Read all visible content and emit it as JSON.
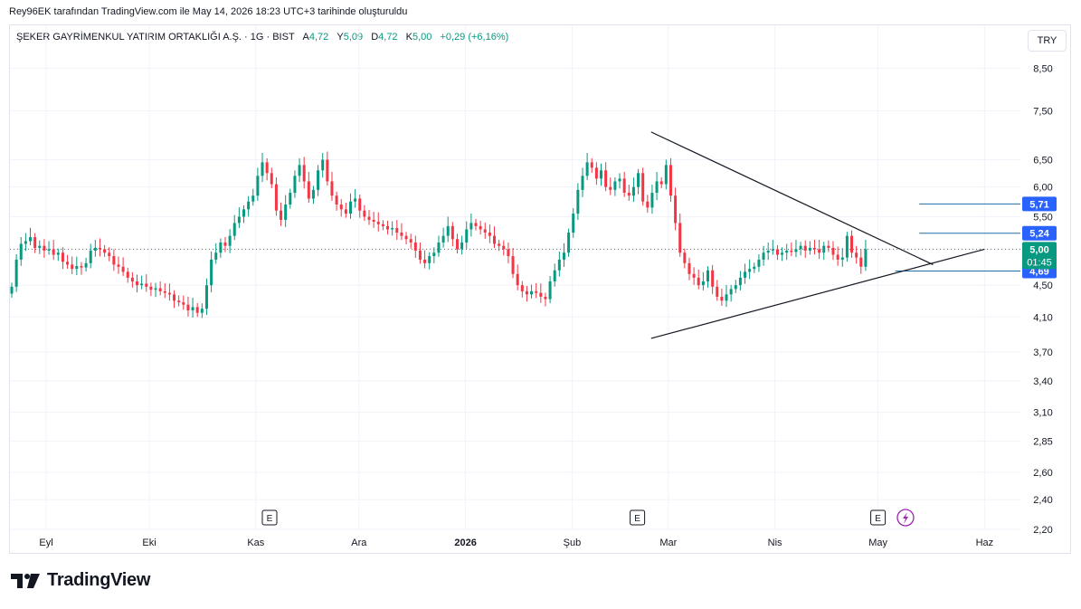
{
  "caption": "Rey96EK tarafından TradingView.com ile May 14, 2026 18:23 UTC+3 tarihinde oluşturuldu",
  "legend": {
    "symbol": "ŞEKER GAYRİMENKUL YATIRIM ORTAKLIĞI A.Ş. · 1G · BIST",
    "open_label": "A",
    "open": "4,72",
    "high_label": "Y",
    "high": "5,09",
    "low_label": "D",
    "low": "4,72",
    "close_label": "K",
    "close": "5,00",
    "change": "+0,29 (+6,16%)"
  },
  "currency_button": "TRY",
  "footer_brand": "TradingView",
  "colors": {
    "up": "#089981",
    "down": "#f23645",
    "blue": "#2962ff",
    "hline": "#1e6fa8",
    "grid": "#f0f3fa"
  },
  "chart_data": {
    "type": "candlestick",
    "y_scale": "log",
    "ylim": [
      2.2,
      8.9
    ],
    "y_ticks": [
      "8,50",
      "7,50",
      "6,50",
      "6,00",
      "5,50",
      "5,00",
      "4,50",
      "4,10",
      "3,70",
      "3,40",
      "3,10",
      "2,85",
      "2,60",
      "2,40",
      "2,20"
    ],
    "x_ticks": [
      {
        "label": "Eyl",
        "day": 10
      },
      {
        "label": "Eki",
        "day": 40
      },
      {
        "label": "Kas",
        "day": 71
      },
      {
        "label": "Ara",
        "day": 101
      },
      {
        "label": "2026",
        "day": 132,
        "bold": true
      },
      {
        "label": "Şub",
        "day": 163
      },
      {
        "label": "Mar",
        "day": 191
      },
      {
        "label": "Nis",
        "day": 222
      },
      {
        "label": "May",
        "day": 252
      },
      {
        "label": "Haz",
        "day": 283
      }
    ],
    "x_range": [
      0,
      300
    ],
    "earnings_days": [
      75,
      182,
      252
    ],
    "dividend_day": 260,
    "closes": [
      4.48,
      4.85,
      5.08,
      5.12,
      5.18,
      5.02,
      5.05,
      4.98,
      5.0,
      4.92,
      4.95,
      4.82,
      4.78,
      4.72,
      4.76,
      4.74,
      4.8,
      4.98,
      5.02,
      5.0,
      4.95,
      4.9,
      4.78,
      4.75,
      4.68,
      4.6,
      4.55,
      4.5,
      4.52,
      4.48,
      4.44,
      4.46,
      4.42,
      4.4,
      4.38,
      4.3,
      4.28,
      4.25,
      4.18,
      4.22,
      4.15,
      4.2,
      4.5,
      4.85,
      4.95,
      5.1,
      5.05,
      5.2,
      5.4,
      5.5,
      5.62,
      5.75,
      5.85,
      6.2,
      6.45,
      6.25,
      6.05,
      5.6,
      5.45,
      5.7,
      5.9,
      6.2,
      6.4,
      6.1,
      5.8,
      5.95,
      6.3,
      6.5,
      6.1,
      5.85,
      5.7,
      5.62,
      5.55,
      5.75,
      5.8,
      5.6,
      5.5,
      5.45,
      5.42,
      5.38,
      5.35,
      5.3,
      5.32,
      5.25,
      5.2,
      5.15,
      5.1,
      4.98,
      4.85,
      4.8,
      4.9,
      4.95,
      5.1,
      5.2,
      5.35,
      5.15,
      5.0,
      5.1,
      5.3,
      5.4,
      5.35,
      5.3,
      5.25,
      5.2,
      5.08,
      5.05,
      5.0,
      4.9,
      4.65,
      4.5,
      4.42,
      4.38,
      4.42,
      4.4,
      4.35,
      4.32,
      4.55,
      4.7,
      4.85,
      4.95,
      5.25,
      5.55,
      5.95,
      6.2,
      6.45,
      6.35,
      6.15,
      6.3,
      6.0,
      5.95,
      6.1,
      6.15,
      5.9,
      5.85,
      6.0,
      6.25,
      5.75,
      5.65,
      5.9,
      6.1,
      6.05,
      6.4,
      5.85,
      5.4,
      4.95,
      4.8,
      4.65,
      4.6,
      4.5,
      4.55,
      4.7,
      4.48,
      4.35,
      4.3,
      4.38,
      4.45,
      4.5,
      4.6,
      4.68,
      4.72,
      4.75,
      4.85,
      4.95,
      4.98,
      5.0,
      4.92,
      4.95,
      4.98,
      4.96,
      5.0,
      5.05,
      4.98,
      5.02,
      5.0,
      4.95,
      5.05,
      5.02,
      4.92,
      4.85,
      4.88,
      5.2,
      4.95,
      4.88,
      4.75,
      5.0
    ],
    "price_labels": [
      {
        "value": 5.71,
        "text": "5,71",
        "color": "#2962ff"
      },
      {
        "value": 5.24,
        "text": "5,24",
        "color": "#2962ff"
      },
      {
        "value": 4.69,
        "text": "4,69",
        "color": "#2962ff"
      }
    ],
    "current_price": {
      "value": 5.0,
      "text": "5,00",
      "countdown": "01:45",
      "color": "#089981"
    },
    "trendlines": [
      {
        "x1": 186,
        "y1": 7.05,
        "x2": 268,
        "y2": 4.78
      },
      {
        "x1": 186,
        "y1": 3.85,
        "x2": 283,
        "y2": 5.0
      }
    ],
    "hlines": [
      {
        "value": 5.71,
        "x_start": 264
      },
      {
        "value": 5.24,
        "x_start": 264
      },
      {
        "value": 4.69,
        "x_start": 257
      }
    ]
  }
}
